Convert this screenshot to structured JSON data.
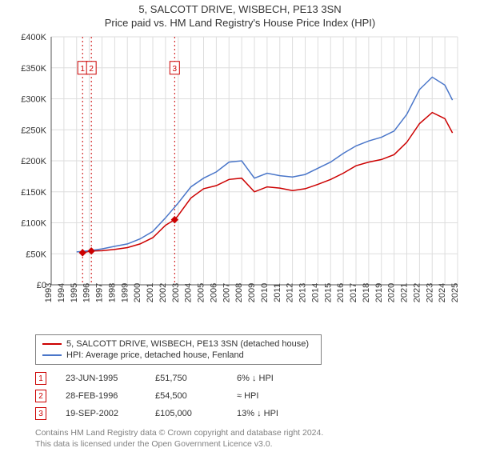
{
  "titles": {
    "line1": "5, SALCOTT DRIVE, WISBECH, PE13 3SN",
    "line2": "Price paid vs. HM Land Registry's House Price Index (HPI)"
  },
  "chart": {
    "type": "line",
    "background_color": "#ffffff",
    "grid_color": "#dddddd",
    "axis_color": "#555555",
    "title_fontsize": 13,
    "tick_fontsize": 11,
    "x": {
      "min": 1993,
      "max": 2025,
      "ticks": [
        1993,
        1994,
        1995,
        1996,
        1997,
        1998,
        1999,
        2000,
        2001,
        2002,
        2003,
        2004,
        2005,
        2006,
        2007,
        2008,
        2009,
        2010,
        2011,
        2012,
        2013,
        2014,
        2015,
        2016,
        2017,
        2018,
        2019,
        2020,
        2021,
        2022,
        2023,
        2024,
        2025
      ]
    },
    "y": {
      "min": 0,
      "max": 400000,
      "ticks": [
        0,
        50000,
        100000,
        150000,
        200000,
        250000,
        300000,
        350000,
        400000
      ],
      "tick_labels": [
        "£0",
        "£50K",
        "£100K",
        "£150K",
        "£200K",
        "£250K",
        "£300K",
        "£350K",
        "£400K"
      ]
    },
    "series": [
      {
        "name": "property",
        "label": "5, SALCOTT DRIVE, WISBECH, PE13 3SN (detached house)",
        "color": "#cc0000",
        "line_width": 1.5,
        "data": [
          [
            1995.47,
            51750
          ],
          [
            1996.16,
            54500
          ],
          [
            1997.0,
            55000
          ],
          [
            1998.0,
            57000
          ],
          [
            1999.0,
            60000
          ],
          [
            2000.0,
            66000
          ],
          [
            2001.0,
            76000
          ],
          [
            2002.0,
            96000
          ],
          [
            2002.72,
            105000
          ],
          [
            2003.0,
            112000
          ],
          [
            2004.0,
            140000
          ],
          [
            2005.0,
            155000
          ],
          [
            2006.0,
            160000
          ],
          [
            2007.0,
            170000
          ],
          [
            2008.0,
            172000
          ],
          [
            2009.0,
            150000
          ],
          [
            2010.0,
            158000
          ],
          [
            2011.0,
            156000
          ],
          [
            2012.0,
            152000
          ],
          [
            2013.0,
            155000
          ],
          [
            2014.0,
            162000
          ],
          [
            2015.0,
            170000
          ],
          [
            2016.0,
            180000
          ],
          [
            2017.0,
            192000
          ],
          [
            2018.0,
            198000
          ],
          [
            2019.0,
            202000
          ],
          [
            2020.0,
            210000
          ],
          [
            2021.0,
            230000
          ],
          [
            2022.0,
            260000
          ],
          [
            2023.0,
            278000
          ],
          [
            2024.0,
            268000
          ],
          [
            2024.6,
            245000
          ]
        ]
      },
      {
        "name": "hpi",
        "label": "HPI: Average price, detached house, Fenland",
        "color": "#4a76c9",
        "line_width": 1.5,
        "data": [
          [
            1995.0,
            53000
          ],
          [
            1996.0,
            55000
          ],
          [
            1997.0,
            58000
          ],
          [
            1998.0,
            62000
          ],
          [
            1999.0,
            66000
          ],
          [
            2000.0,
            74000
          ],
          [
            2001.0,
            86000
          ],
          [
            2002.0,
            108000
          ],
          [
            2003.0,
            132000
          ],
          [
            2004.0,
            158000
          ],
          [
            2005.0,
            172000
          ],
          [
            2006.0,
            182000
          ],
          [
            2007.0,
            198000
          ],
          [
            2008.0,
            200000
          ],
          [
            2009.0,
            172000
          ],
          [
            2010.0,
            180000
          ],
          [
            2011.0,
            176000
          ],
          [
            2012.0,
            174000
          ],
          [
            2013.0,
            178000
          ],
          [
            2014.0,
            188000
          ],
          [
            2015.0,
            198000
          ],
          [
            2016.0,
            212000
          ],
          [
            2017.0,
            224000
          ],
          [
            2018.0,
            232000
          ],
          [
            2019.0,
            238000
          ],
          [
            2020.0,
            248000
          ],
          [
            2021.0,
            275000
          ],
          [
            2022.0,
            315000
          ],
          [
            2023.0,
            335000
          ],
          [
            2024.0,
            322000
          ],
          [
            2024.6,
            298000
          ]
        ]
      }
    ],
    "sale_markers": [
      {
        "n": "1",
        "x": 1995.47,
        "y": 51750,
        "color": "#cc0000"
      },
      {
        "n": "2",
        "x": 1996.16,
        "y": 54500,
        "color": "#cc0000"
      },
      {
        "n": "3",
        "x": 2002.72,
        "y": 105000,
        "color": "#cc0000"
      }
    ],
    "vlines_color": "#cc0000",
    "vlines_dash": "2,3",
    "label_box_top_y": 350000
  },
  "legend": {
    "items": [
      {
        "color": "#cc0000",
        "text": "5, SALCOTT DRIVE, WISBECH, PE13 3SN (detached house)"
      },
      {
        "color": "#4a76c9",
        "text": "HPI: Average price, detached house, Fenland"
      }
    ]
  },
  "sales": [
    {
      "n": "1",
      "date": "23-JUN-1995",
      "price": "£51,750",
      "diff": "6% ↓ HPI"
    },
    {
      "n": "2",
      "date": "28-FEB-1996",
      "price": "£54,500",
      "diff": "≈ HPI"
    },
    {
      "n": "3",
      "date": "19-SEP-2002",
      "price": "£105,000",
      "diff": "13% ↓ HPI"
    }
  ],
  "licence": {
    "line1": "Contains HM Land Registry data © Crown copyright and database right 2024.",
    "line2": "This data is licensed under the Open Government Licence v3.0."
  }
}
